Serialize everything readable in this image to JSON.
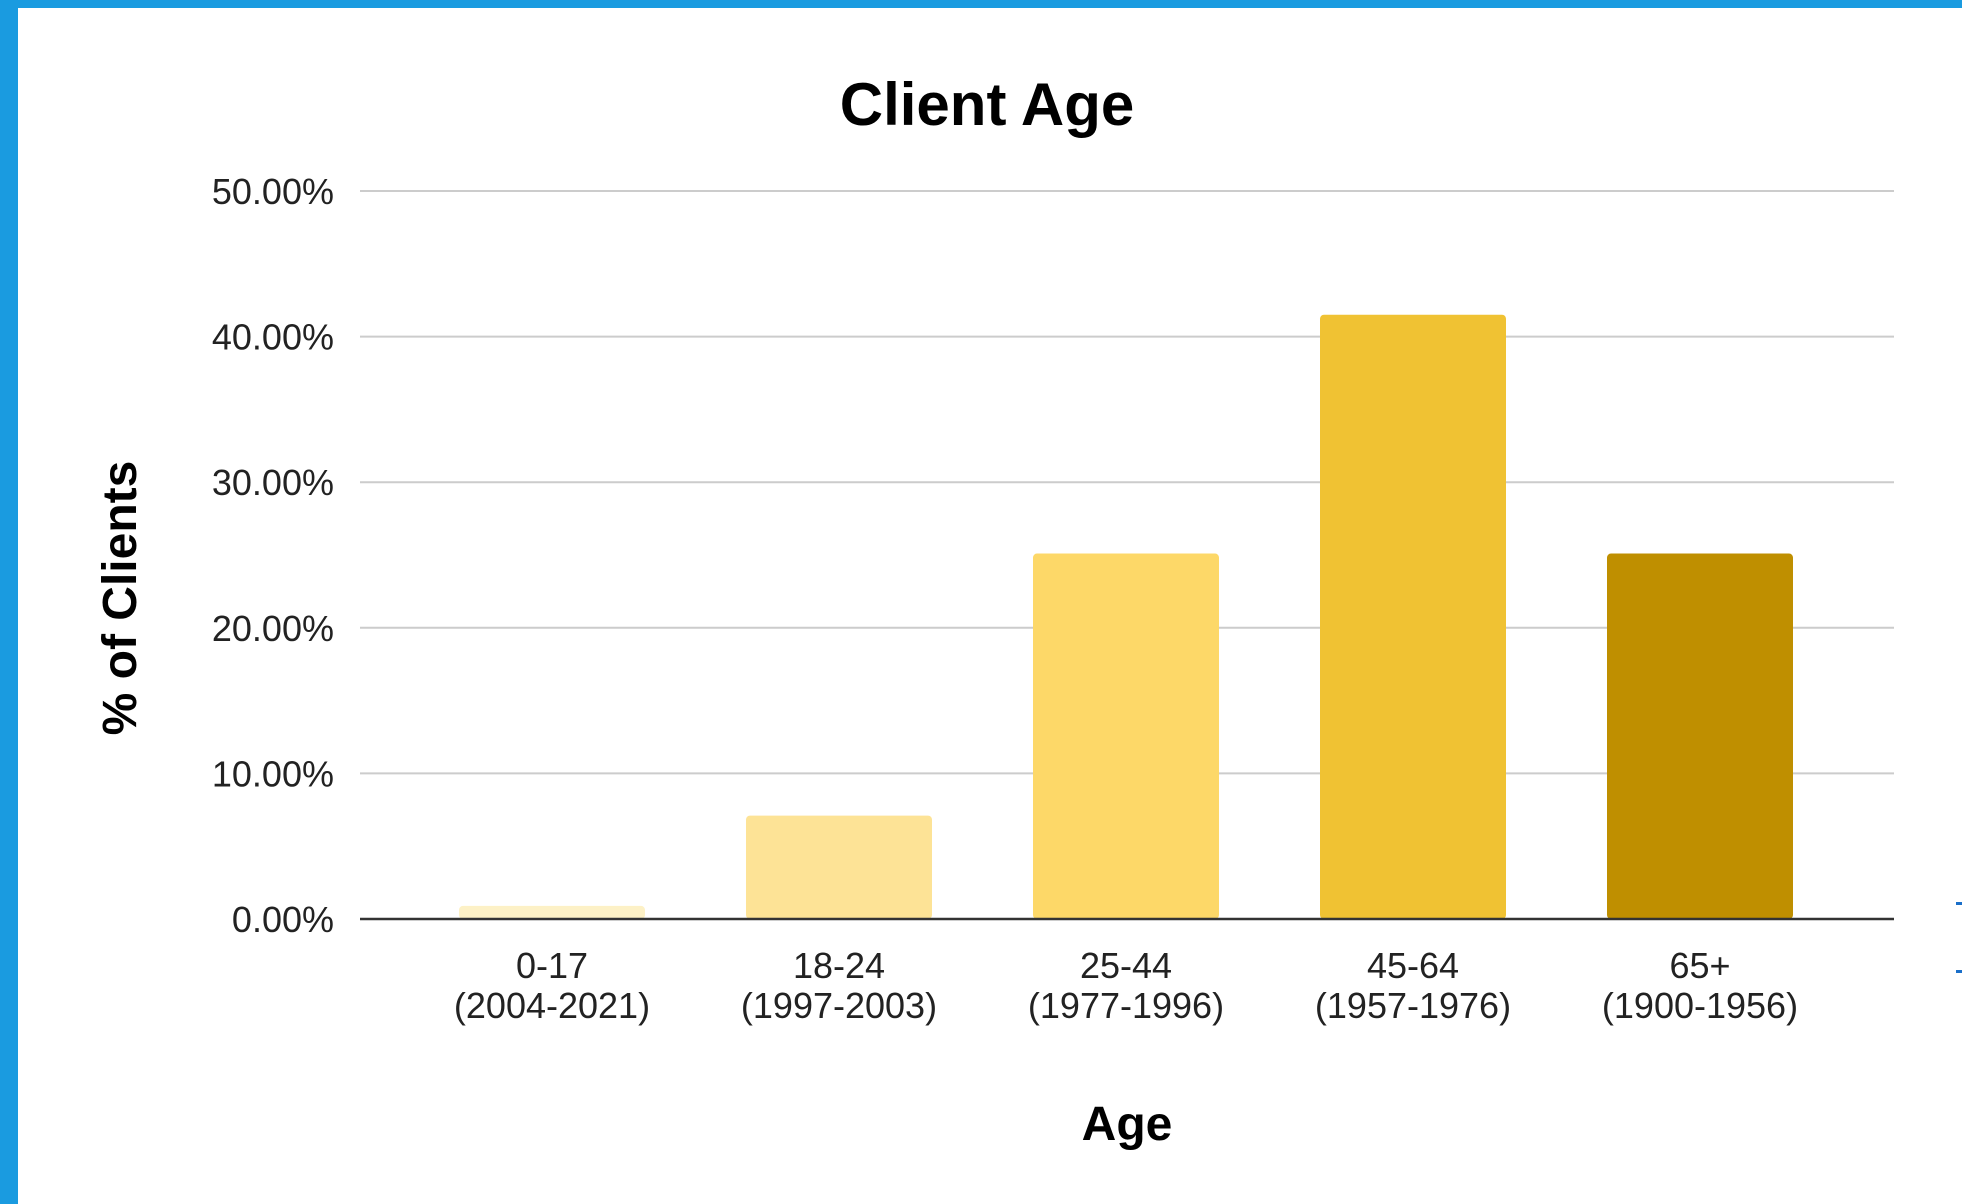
{
  "chart_data": {
    "type": "bar",
    "title": "Client Age",
    "xlabel": "Age",
    "ylabel": "% of Clients",
    "ylim": [
      0,
      50
    ],
    "yticks": [
      "0.00%",
      "10.00%",
      "20.00%",
      "30.00%",
      "40.00%",
      "50.00%"
    ],
    "categories": [
      [
        "0-17",
        "(2004-2021)"
      ],
      [
        "18-24",
        "(1997-2003)"
      ],
      [
        "25-44",
        "(1977-1996)"
      ],
      [
        "45-64",
        "(1957-1976)"
      ],
      [
        "65+",
        "(1900-1956)"
      ]
    ],
    "values": [
      0.9,
      7.1,
      25.1,
      41.5,
      25.1
    ],
    "colors": [
      "#fdf1c6",
      "#fde396",
      "#fdd868",
      "#f0c233",
      "#bf8f00"
    ],
    "grid": true,
    "legend": "none"
  }
}
